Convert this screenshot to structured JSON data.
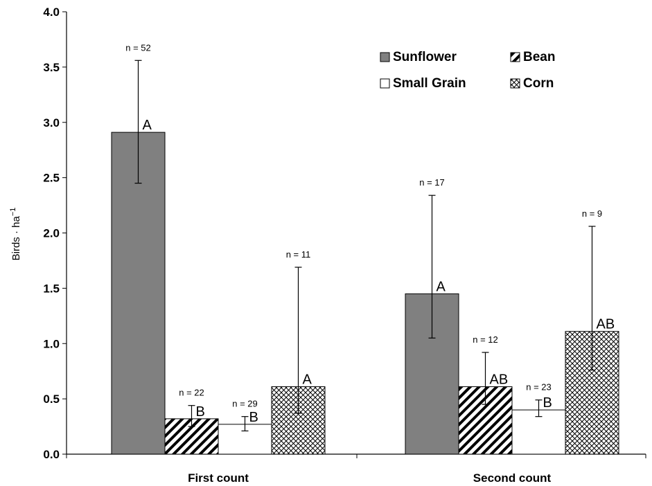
{
  "chart_data": {
    "type": "bar",
    "title": "",
    "xlabel": "",
    "ylabel": "Birds · ha",
    "ylabel_sup": "−1",
    "ylim": [
      0,
      4.0
    ],
    "yticks": [
      "0.0",
      "0.5",
      "1.0",
      "1.5",
      "2.0",
      "2.5",
      "3.0",
      "3.5",
      "4.0"
    ],
    "grid": false,
    "legend_placement": "top-right",
    "categories": [
      "First count",
      "Second count"
    ],
    "series": [
      {
        "name": "Sunflower",
        "pattern": "solid-gray",
        "color": "#808080",
        "values": [
          2.91,
          1.45
        ],
        "err_low": [
          2.45,
          1.05
        ],
        "err_high": [
          3.56,
          2.34
        ],
        "n_labels": [
          "n = 52",
          "n = 17"
        ],
        "sig_labels": [
          "A",
          "A"
        ]
      },
      {
        "name": "Bean",
        "pattern": "diagonal-hatch",
        "color": "#000000",
        "values": [
          0.32,
          0.61
        ],
        "err_low": [
          0.25,
          0.45
        ],
        "err_high": [
          0.44,
          0.92
        ],
        "n_labels": [
          "n = 22",
          "n = 12"
        ],
        "sig_labels": [
          "B",
          "AB"
        ]
      },
      {
        "name": "Small Grain",
        "pattern": "white",
        "color": "#ffffff",
        "values": [
          0.27,
          0.4
        ],
        "err_low": [
          0.21,
          0.34
        ],
        "err_high": [
          0.34,
          0.49
        ],
        "n_labels": [
          "n = 29",
          "n = 23"
        ],
        "sig_labels": [
          "B",
          "B"
        ]
      },
      {
        "name": "Corn",
        "pattern": "crosshatch",
        "color": "#000000",
        "values": [
          0.61,
          1.11
        ],
        "err_low": [
          0.37,
          0.76
        ],
        "err_high": [
          1.69,
          2.06
        ],
        "n_labels": [
          "n = 11",
          "n = 9"
        ],
        "sig_labels": [
          "A",
          "AB"
        ]
      }
    ]
  }
}
